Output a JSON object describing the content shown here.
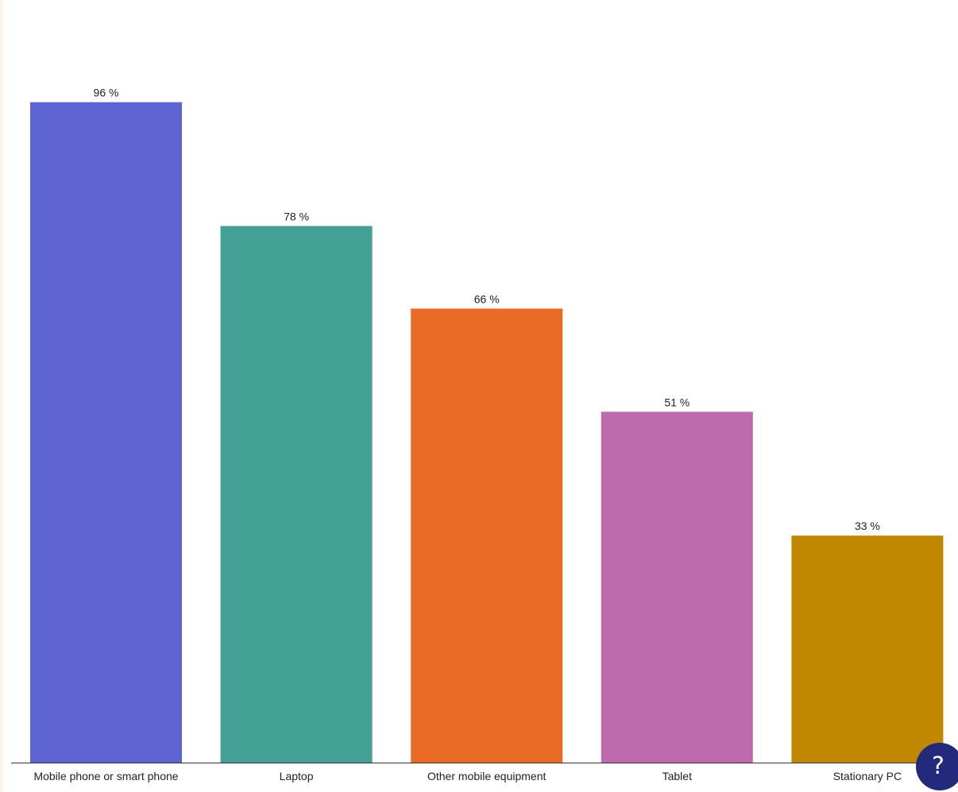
{
  "chart_data": {
    "type": "bar",
    "categories": [
      "Mobile phone or smart phone",
      "Laptop",
      "Other mobile equipment",
      "Tablet",
      "Stationary PC"
    ],
    "values": [
      96,
      78,
      66,
      51,
      33
    ],
    "value_labels": [
      "96 %",
      "78 %",
      "66 %",
      "51 %",
      "33 %"
    ],
    "colors": [
      "#5d63d3",
      "#42a094",
      "#e86a24",
      "#bd6bad",
      "#c08800"
    ],
    "ylim": [
      0,
      100
    ],
    "grid": false,
    "legend": "none"
  },
  "help_button": {
    "label": "?",
    "icon": "question-mark-icon"
  }
}
